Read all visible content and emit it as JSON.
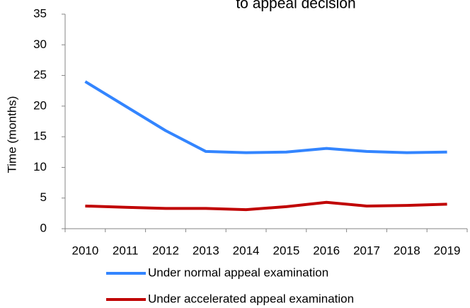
{
  "chart_data": {
    "type": "line",
    "title": "to appeal decision",
    "y_label": "Time (months)",
    "categories": [
      "2010",
      "2011",
      "2012",
      "2013",
      "2014",
      "2015",
      "2016",
      "2017",
      "2018",
      "2019"
    ],
    "series": [
      {
        "name": "Under normal appeal examination",
        "color": "#3385ff",
        "values": [
          24,
          20,
          16,
          12.6,
          12.4,
          12.5,
          13.1,
          12.6,
          12.4,
          12.5
        ]
      },
      {
        "name": "Under accelerated appeal examination",
        "color": "#c00000",
        "values": [
          3.7,
          3.5,
          3.3,
          3.3,
          3.1,
          3.6,
          4.3,
          3.7,
          3.8,
          4.0
        ]
      }
    ],
    "ylim": [
      0,
      35
    ],
    "yticks": [
      0,
      5,
      10,
      15,
      20,
      25,
      30,
      35
    ],
    "grid": false,
    "legend": "bottom"
  }
}
